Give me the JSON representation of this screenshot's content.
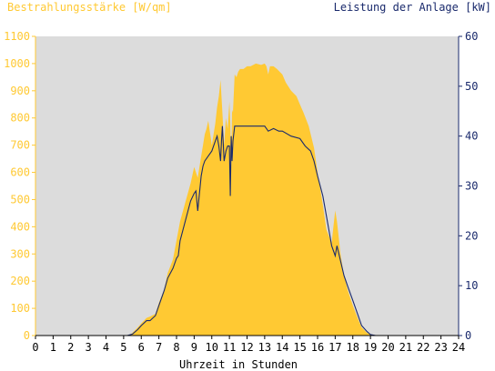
{
  "chart_data": {
    "type": "area",
    "left_axis_title": "Bestrahlungsstärke [W/qm]",
    "right_axis_title": "Leistung der Anlage [kW]",
    "xlabel": "Uhrzeit in Stunden",
    "xlim": [
      0,
      24
    ],
    "x_ticks": [
      "0",
      "1",
      "2",
      "3",
      "4",
      "5",
      "6",
      "7",
      "8",
      "9",
      "10",
      "11",
      "12",
      "13",
      "14",
      "15",
      "16",
      "17",
      "18",
      "19",
      "20",
      "21",
      "22",
      "23",
      "24"
    ],
    "left_ylim": [
      0,
      1100
    ],
    "left_ticks": [
      "0",
      "100",
      "200",
      "300",
      "400",
      "500",
      "600",
      "700",
      "800",
      "900",
      "1000",
      "1100"
    ],
    "right_ylim": [
      0,
      60
    ],
    "right_ticks": [
      "0",
      "10",
      "20",
      "30",
      "40",
      "50",
      "60"
    ],
    "grid": false,
    "colors": {
      "irradiance": "#ffc933",
      "power": "#1a2a6c",
      "left_axis_text": "#ffc933",
      "right_axis_text": "#1a2a6c",
      "plot_background": "#dcdcdc"
    },
    "series": [
      {
        "axis": "left",
        "kind": "area",
        "x": [
          5.3,
          5.5,
          5.8,
          6.0,
          6.3,
          6.5,
          6.8,
          7.0,
          7.3,
          7.5,
          7.8,
          8.0,
          8.2,
          8.5,
          8.8,
          9.0,
          9.2,
          9.4,
          9.5,
          9.6,
          9.7,
          9.8,
          10.0,
          10.2,
          10.3,
          10.4,
          10.5,
          10.6,
          10.7,
          10.8,
          10.9,
          11.0,
          11.05,
          11.1,
          11.15,
          11.2,
          11.3,
          11.4,
          11.5,
          11.6,
          11.8,
          12.0,
          12.2,
          12.5,
          12.8,
          13.0,
          13.1,
          13.2,
          13.3,
          13.5,
          13.7,
          14.0,
          14.2,
          14.5,
          14.8,
          15.0,
          15.2,
          15.5,
          15.8,
          16.0,
          16.3,
          16.5,
          16.8,
          16.9,
          17.0,
          17.1,
          17.2,
          17.3,
          17.5,
          17.7,
          18.0,
          18.3,
          18.5,
          18.8,
          19.0,
          19.2,
          19.5
        ],
        "y": [
          0,
          10,
          30,
          45,
          65,
          70,
          80,
          120,
          170,
          230,
          280,
          350,
          420,
          490,
          560,
          620,
          580,
          660,
          700,
          740,
          760,
          790,
          700,
          780,
          840,
          880,
          940,
          820,
          700,
          800,
          760,
          860,
          780,
          620,
          830,
          820,
          960,
          950,
          970,
          980,
          980,
          990,
          990,
          1000,
          995,
          1000,
          990,
          960,
          990,
          990,
          980,
          960,
          930,
          900,
          880,
          850,
          820,
          770,
          690,
          600,
          480,
          390,
          340,
          400,
          460,
          420,
          360,
          300,
          220,
          170,
          110,
          60,
          30,
          10,
          5,
          0,
          0
        ]
      },
      {
        "axis": "right",
        "kind": "line",
        "x": [
          5.2,
          5.5,
          5.8,
          6.0,
          6.3,
          6.5,
          6.8,
          7.0,
          7.3,
          7.5,
          7.8,
          8.0,
          8.1,
          8.2,
          8.5,
          8.8,
          9.0,
          9.1,
          9.2,
          9.4,
          9.5,
          9.6,
          9.8,
          10.0,
          10.2,
          10.3,
          10.4,
          10.5,
          10.55,
          10.6,
          10.7,
          10.8,
          10.9,
          11.0,
          11.05,
          11.1,
          11.15,
          11.2,
          11.3,
          11.5,
          11.8,
          12.0,
          12.2,
          12.5,
          12.8,
          13.0,
          13.2,
          13.5,
          13.8,
          14.0,
          14.5,
          15.0,
          15.3,
          15.6,
          15.8,
          16.0,
          16.3,
          16.5,
          16.7,
          16.8,
          17.0,
          17.1,
          17.3,
          17.5,
          17.7,
          18.0,
          18.3,
          18.5,
          18.8,
          19.0,
          19.3,
          19.6
        ],
        "y": [
          0,
          0.3,
          1.2,
          2.0,
          3.0,
          3.0,
          4.0,
          6.0,
          9.0,
          11.5,
          13.5,
          15.5,
          16.0,
          19.0,
          23.0,
          27.0,
          28.5,
          29.0,
          25.0,
          32.0,
          34.0,
          35.0,
          36.0,
          37.0,
          39.0,
          40.0,
          38.0,
          35.0,
          39.0,
          42.0,
          35.0,
          37.0,
          38.0,
          38.0,
          28.0,
          40.0,
          35.0,
          39.0,
          42.0,
          42.0,
          42.0,
          42.0,
          42.0,
          42.0,
          42.0,
          42.0,
          41.0,
          41.5,
          41.0,
          41.0,
          40.0,
          39.5,
          38.0,
          37.0,
          35.0,
          32.0,
          28.0,
          24.0,
          20.0,
          18.0,
          16.0,
          18.0,
          15.0,
          12.0,
          10.0,
          7.0,
          4.0,
          2.0,
          0.8,
          0.2,
          0,
          0
        ]
      }
    ]
  }
}
